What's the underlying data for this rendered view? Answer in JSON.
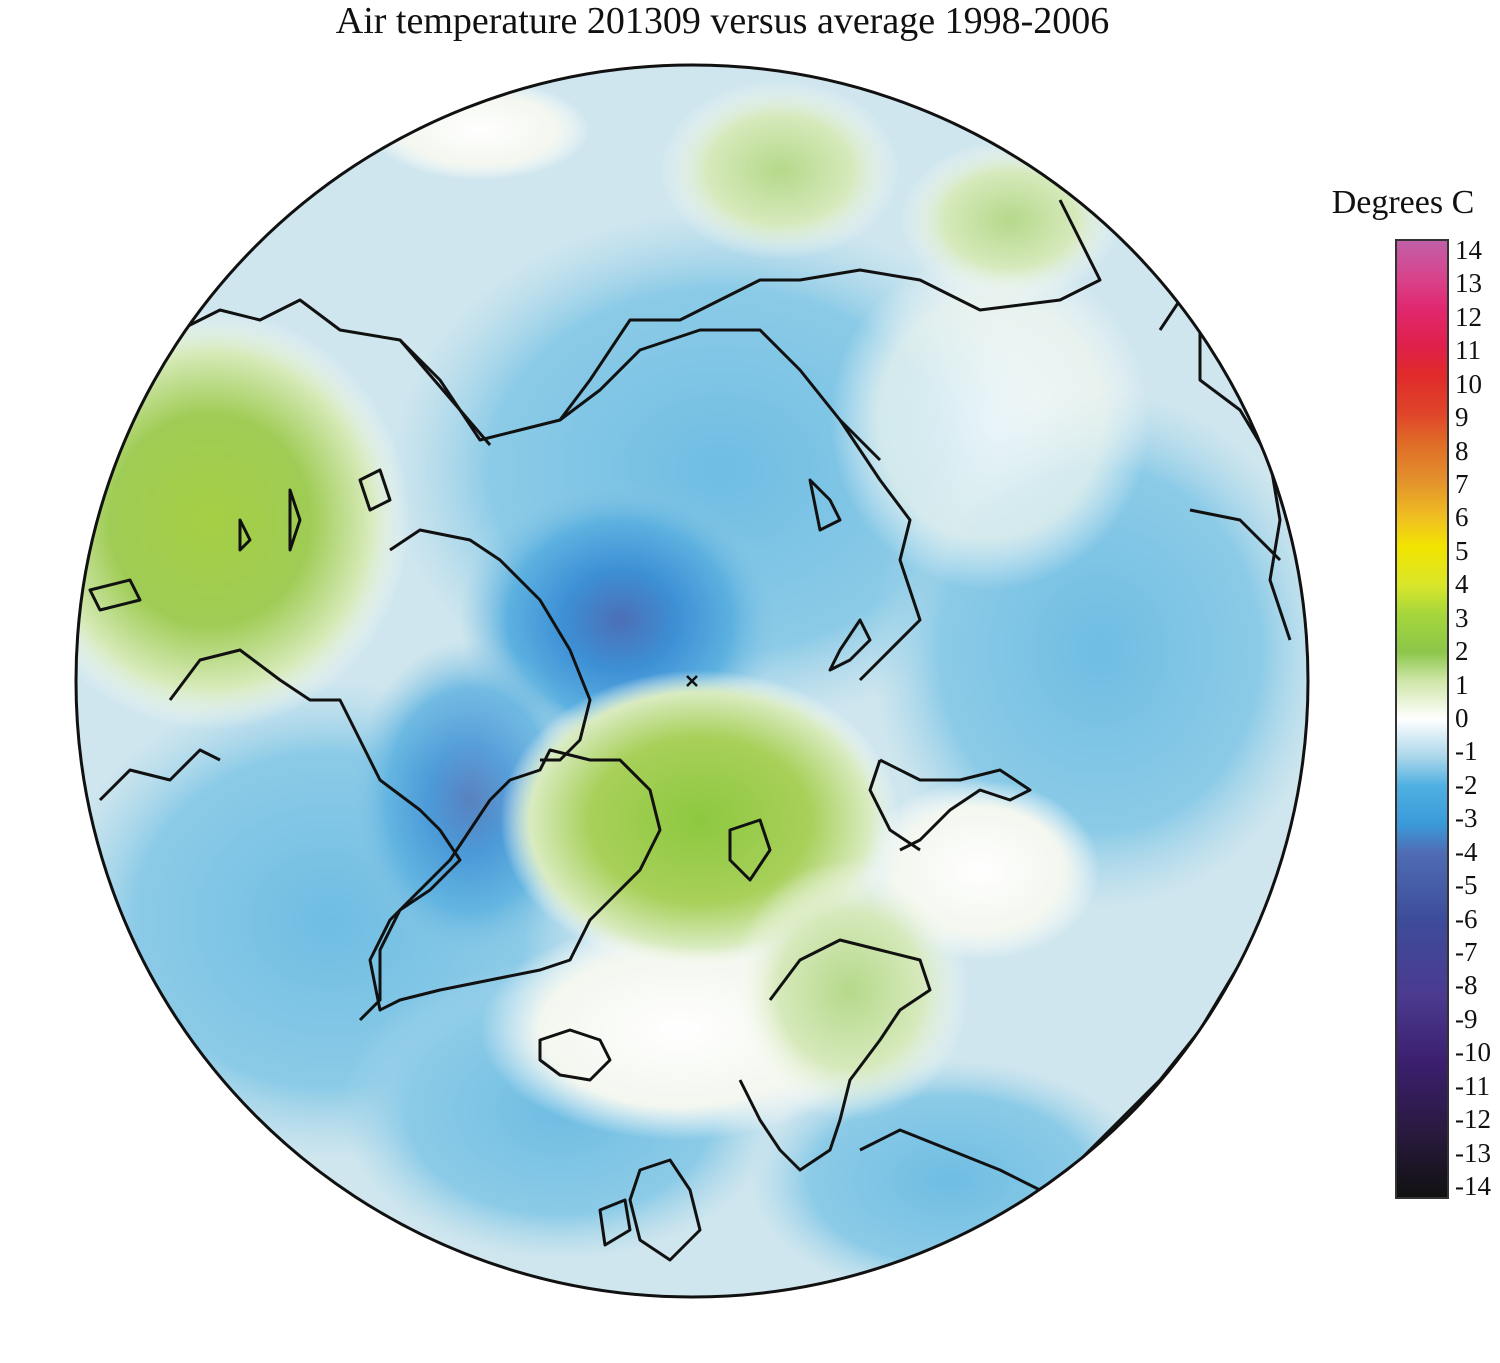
{
  "title": "Air temperature 201309 versus average 1998-2006",
  "legend": {
    "title": "Degrees C",
    "ticks": [
      "14",
      "13",
      "12",
      "11",
      "10",
      "9",
      "8",
      "7",
      "6",
      "5",
      "4",
      "3",
      "2",
      "1",
      "0",
      "-1",
      "-2",
      "-3",
      "-4",
      "-5",
      "-6",
      "-7",
      "-8",
      "-9",
      "-10",
      "-11",
      "-12",
      "-13",
      "-14"
    ],
    "range": [
      -14,
      14
    ],
    "colors": {
      "-14": "#111111",
      "-12": "#2a1a40",
      "-10": "#3b1f6e",
      "-8": "#4b3a8f",
      "-6": "#3d4c9a",
      "-4": "#4f6cb4",
      "-3": "#3a9ad9",
      "-2": "#4fb0e2",
      "-1": "#a9d6ea",
      "0": "#ffffff",
      "1": "#cfe6a8",
      "2": "#8cc64a",
      "3": "#a6d63c",
      "4": "#d9e62a",
      "5": "#f2e400",
      "6": "#f0c020",
      "7": "#e2902c",
      "8": "#e06a28",
      "9": "#e0442a",
      "10": "#e02a2a",
      "11": "#e0204a",
      "12": "#e02870",
      "13": "#d8428a",
      "14": "#c060a8"
    }
  },
  "map": {
    "projection": "north polar stereographic",
    "ocean_default_color": "#cfe6ee",
    "land_outline_color": "#111111"
  }
}
